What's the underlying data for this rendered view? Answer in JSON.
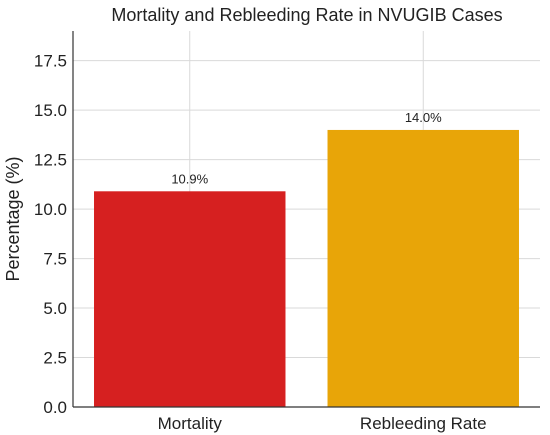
{
  "chart_data": {
    "type": "bar",
    "title": "Mortality and Rebleeding Rate in NVUGIB Cases",
    "xlabel": "",
    "ylabel": "Percentage (%)",
    "categories": [
      "Mortality",
      "Rebleeding Rate"
    ],
    "values": [
      10.9,
      14.0
    ],
    "data_labels": [
      "10.9%",
      "14.0%"
    ],
    "colors": [
      "#d62020",
      "#e8a508"
    ],
    "ylim": [
      0,
      19
    ],
    "yticks": [
      0,
      2.5,
      5,
      7.5,
      10,
      12.5,
      15,
      17.5
    ],
    "ytick_labels": [
      "0.0",
      "2.5",
      "5.0",
      "7.5",
      "10.0",
      "12.5",
      "15.0",
      "17.5"
    ],
    "grid": true
  }
}
